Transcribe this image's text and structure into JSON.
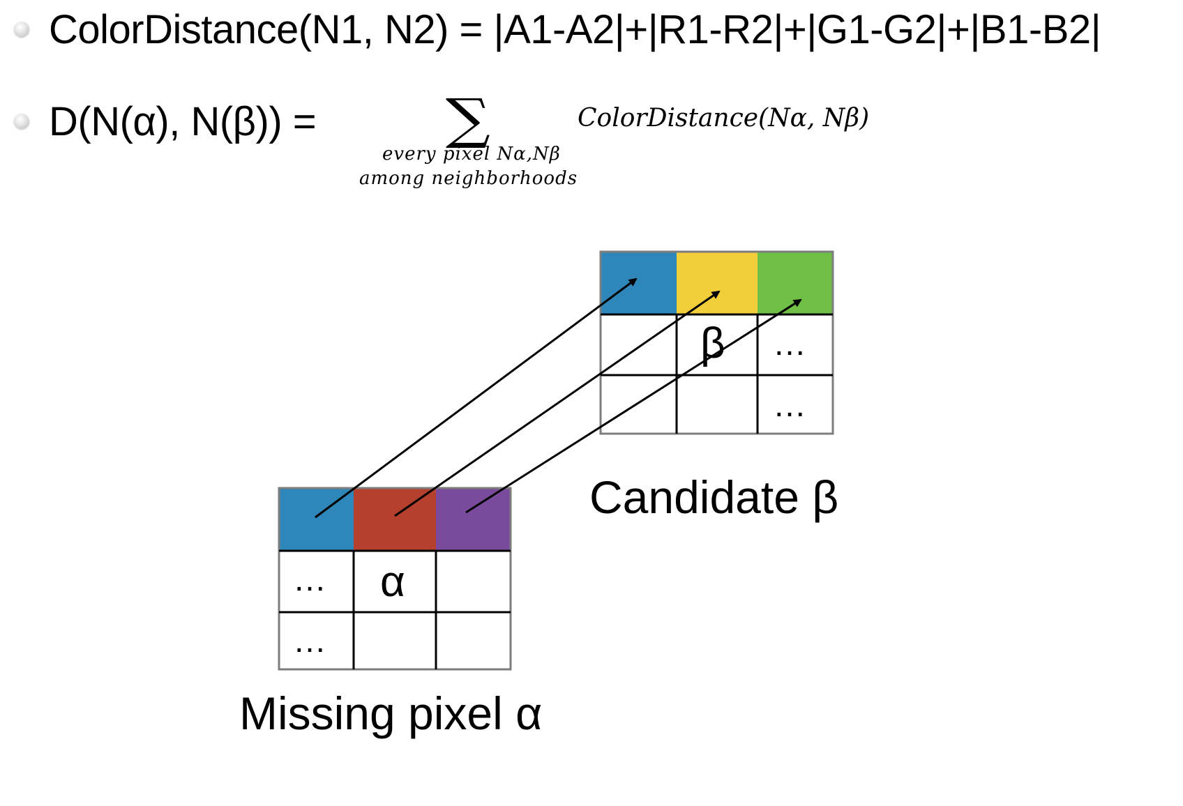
{
  "bullets": [
    {
      "text": "ColorDistance(N1, N2) = |A1-A2|+|R1-R2|+|G1-G2|+|B1-B2|"
    },
    {
      "text": "D(N(α), N(β)) ="
    }
  ],
  "sum_symbol": "∑",
  "sum_subscript": [
    "every pixel Nα,Nβ",
    "among neighborhoods"
  ],
  "sum_term": "ColorDistance(Nα, Nβ)",
  "candidate_grid": {
    "label": "Candidate β",
    "top_row_colors": [
      "#2f86b8",
      "#f2cf3a",
      "#6fbe45"
    ],
    "cells": [
      [
        "",
        "β",
        "…"
      ],
      [
        "",
        "",
        "…"
      ]
    ]
  },
  "missing_grid": {
    "label": "Missing pixel α",
    "top_row_colors": [
      "#2f86b8",
      "#b5402e",
      "#7a4a9c"
    ],
    "cells": [
      [
        "…",
        "α",
        ""
      ],
      [
        "…",
        "",
        ""
      ]
    ]
  }
}
